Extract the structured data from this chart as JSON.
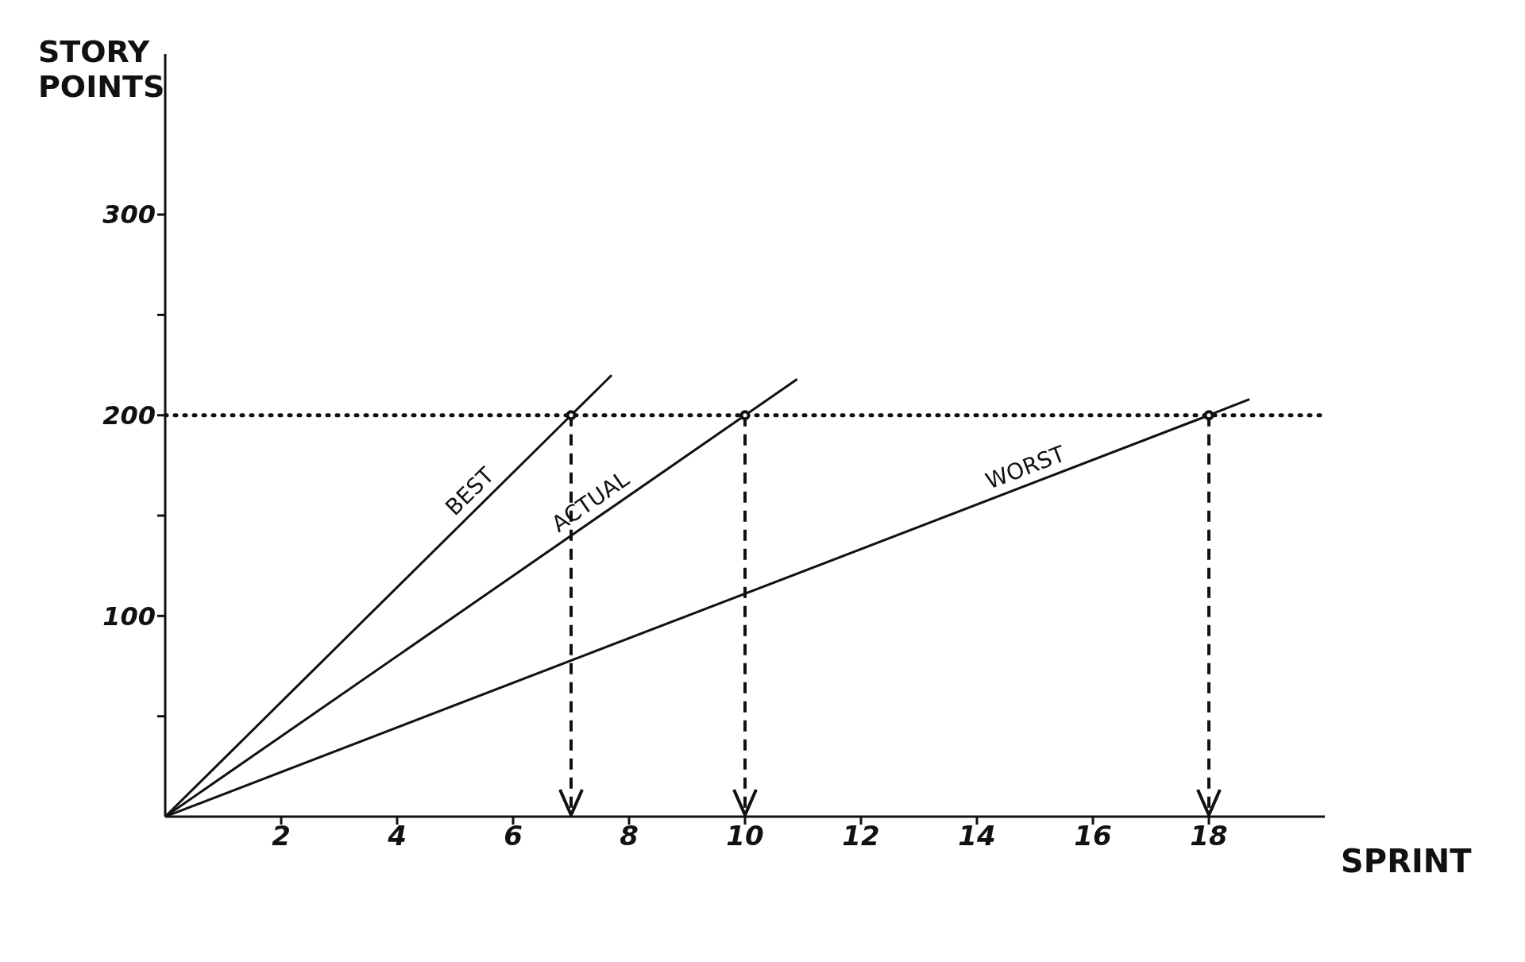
{
  "chart_data": {
    "type": "line",
    "xlabel": "SPRINT",
    "ylabel": "STORY POINTS",
    "xlim": [
      0,
      20
    ],
    "xticks": [
      2,
      4,
      6,
      8,
      10,
      12,
      14,
      16,
      18
    ],
    "ylim": [
      0,
      380
    ],
    "yticks": [
      {
        "value": 50,
        "label": null
      },
      100,
      {
        "value": 150,
        "label": null
      },
      200,
      {
        "value": 250,
        "label": null
      },
      300
    ],
    "marker": "none",
    "line_style": "solid",
    "series": [
      {
        "name": "BEST",
        "color": "#111111",
        "x": [
          0,
          7,
          7.7
        ],
        "values": [
          0,
          200,
          220
        ]
      },
      {
        "name": "ACTUAL",
        "color": "#111111",
        "x": [
          0,
          10,
          10.9
        ],
        "values": [
          0,
          200,
          218
        ]
      },
      {
        "name": "WORST",
        "color": "#111111",
        "x": [
          0,
          18,
          18.7
        ],
        "values": [
          0,
          200,
          208
        ]
      },
      {
        "type": "scatter",
        "marker": "circle",
        "color": "#111111",
        "x": [
          7,
          10,
          18
        ],
        "values": [
          200,
          200,
          200
        ]
      }
    ],
    "ref_lines": [
      {
        "axis": "y",
        "value": 200,
        "line_style": "dotted",
        "color": "#111111"
      },
      {
        "axis": "x",
        "value": 7,
        "line_style": "dashed",
        "color": "#111111"
      },
      {
        "axis": "x",
        "value": 10,
        "line_style": "dashed",
        "color": "#111111"
      },
      {
        "axis": "x",
        "value": 18,
        "line_style": "dashed",
        "color": "#111111"
      }
    ]
  }
}
